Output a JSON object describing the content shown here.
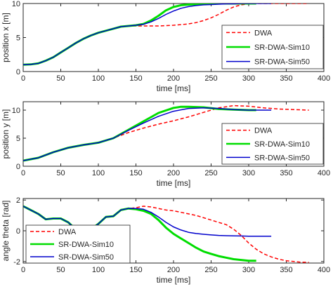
{
  "chart_data": [
    {
      "type": "line",
      "xlabel": "time [ms]",
      "ylabel": "position x [m]",
      "xlim": [
        0,
        400
      ],
      "ylim": [
        0,
        10
      ],
      "xticks": [
        "0",
        "50",
        "100",
        "150",
        "200",
        "250",
        "300",
        "350",
        "400"
      ],
      "yticks": [
        "0",
        "5",
        "10"
      ],
      "grid": false,
      "legend": {
        "position": "right",
        "entries": [
          "DWA",
          "SR-DWA-Sim10",
          "SR-DWA-Sim50"
        ]
      },
      "series": [
        {
          "name": "DWA",
          "color": "#ff0000",
          "style": "dashed",
          "x": [
            0,
            10,
            20,
            30,
            40,
            50,
            60,
            70,
            80,
            90,
            100,
            110,
            120,
            130,
            140,
            150,
            160,
            170,
            180,
            190,
            200,
            210,
            220,
            230,
            240,
            250,
            260,
            270,
            280,
            290,
            300,
            310,
            320,
            330,
            340,
            350,
            360,
            370,
            380
          ],
          "y": [
            1.0,
            1.05,
            1.2,
            1.6,
            2.1,
            2.8,
            3.5,
            4.2,
            4.8,
            5.3,
            5.7,
            6.0,
            6.3,
            6.6,
            6.7,
            6.7,
            6.7,
            6.7,
            6.7,
            6.75,
            6.8,
            6.9,
            7.0,
            7.2,
            7.5,
            7.9,
            8.4,
            9.0,
            9.5,
            9.8,
            9.95,
            10.0,
            10.0,
            10.0,
            10.0,
            10.0,
            10.0,
            10.0,
            10.0
          ]
        },
        {
          "name": "SR-DWA-Sim10",
          "color": "#00dd00",
          "style": "solid",
          "x": [
            0,
            10,
            20,
            30,
            40,
            50,
            60,
            70,
            80,
            90,
            100,
            110,
            120,
            130,
            140,
            150,
            160,
            170,
            180,
            190,
            200,
            210,
            220,
            230,
            240,
            250,
            260,
            270,
            280,
            290,
            300,
            310
          ],
          "y": [
            1.0,
            1.05,
            1.2,
            1.6,
            2.1,
            2.8,
            3.5,
            4.2,
            4.8,
            5.3,
            5.7,
            6.0,
            6.3,
            6.6,
            6.7,
            6.8,
            7.0,
            7.5,
            8.2,
            9.0,
            9.5,
            9.75,
            9.85,
            9.9,
            9.95,
            10.0,
            10.0,
            10.0,
            10.0,
            10.0,
            10.0,
            10.0
          ]
        },
        {
          "name": "SR-DWA-Sim50",
          "color": "#0000cc",
          "style": "solid",
          "x": [
            0,
            10,
            20,
            30,
            40,
            50,
            60,
            70,
            80,
            90,
            100,
            110,
            120,
            130,
            140,
            150,
            160,
            170,
            180,
            190,
            200,
            210,
            220,
            230,
            240,
            250,
            260,
            270,
            280,
            290,
            300,
            310,
            320,
            330
          ],
          "y": [
            1.0,
            1.05,
            1.2,
            1.6,
            2.1,
            2.8,
            3.5,
            4.2,
            4.8,
            5.3,
            5.7,
            6.0,
            6.3,
            6.6,
            6.7,
            6.8,
            6.95,
            7.3,
            7.8,
            8.4,
            8.9,
            9.3,
            9.55,
            9.7,
            9.8,
            9.85,
            9.9,
            9.95,
            9.95,
            10.0,
            10.0,
            10.0,
            10.0,
            10.0
          ]
        }
      ]
    },
    {
      "type": "line",
      "xlabel": "time [ms]",
      "ylabel": "position y [m]",
      "xlim": [
        0,
        400
      ],
      "ylim": [
        0,
        11.5
      ],
      "xticks": [
        "0",
        "50",
        "100",
        "150",
        "200",
        "250",
        "300",
        "350",
        "400"
      ],
      "yticks": [
        "0",
        "5",
        "10"
      ],
      "grid": false,
      "legend": {
        "position": "right",
        "entries": [
          "DWA",
          "SR-DWA-Sim10",
          "SR-DWA-Sim50"
        ]
      },
      "series": [
        {
          "name": "DWA",
          "color": "#ff0000",
          "style": "dashed",
          "x": [
            0,
            20,
            40,
            60,
            80,
            100,
            120,
            140,
            160,
            180,
            200,
            220,
            240,
            260,
            280,
            300,
            320,
            340,
            360,
            380
          ],
          "y": [
            1.0,
            1.5,
            2.5,
            3.3,
            3.8,
            4.2,
            5.0,
            6.0,
            6.8,
            7.5,
            8.1,
            8.8,
            9.6,
            10.4,
            10.8,
            10.7,
            10.4,
            10.2,
            10.1,
            10.0
          ]
        },
        {
          "name": "SR-DWA-Sim10",
          "color": "#00dd00",
          "style": "solid",
          "x": [
            0,
            20,
            40,
            60,
            80,
            100,
            120,
            140,
            160,
            180,
            200,
            210,
            220,
            240,
            260,
            280,
            300,
            310
          ],
          "y": [
            1.0,
            1.5,
            2.5,
            3.3,
            3.8,
            4.2,
            5.0,
            6.5,
            8.0,
            9.5,
            10.4,
            10.6,
            10.6,
            10.5,
            10.2,
            10.1,
            10.0,
            10.0
          ]
        },
        {
          "name": "SR-DWA-Sim50",
          "color": "#0000cc",
          "style": "solid",
          "x": [
            0,
            20,
            40,
            60,
            80,
            100,
            120,
            140,
            160,
            180,
            200,
            220,
            240,
            260,
            280,
            300,
            320,
            330
          ],
          "y": [
            1.0,
            1.5,
            2.5,
            3.3,
            3.8,
            4.2,
            5.0,
            6.4,
            7.7,
            8.9,
            9.8,
            10.3,
            10.4,
            10.3,
            10.1,
            10.0,
            10.0,
            10.0
          ]
        }
      ]
    },
    {
      "type": "line",
      "xlabel": "time [ms]",
      "ylabel": "angle theta [rad]",
      "xlim": [
        0,
        400
      ],
      "ylim": [
        -2.1,
        2.1
      ],
      "xticks": [
        "0",
        "50",
        "100",
        "150",
        "200",
        "250",
        "300",
        "350",
        "400"
      ],
      "yticks": [
        "-2",
        "0",
        "2"
      ],
      "grid": false,
      "legend": {
        "position": "left",
        "entries": [
          "DWA",
          "SR-DWA-Sim10",
          "SR-DWA-Sim50"
        ]
      },
      "series": [
        {
          "name": "DWA",
          "color": "#ff0000",
          "style": "dashed",
          "x": [
            0,
            10,
            20,
            30,
            40,
            50,
            60,
            70,
            80,
            90,
            100,
            110,
            120,
            130,
            140,
            150,
            160,
            170,
            180,
            190,
            200,
            210,
            220,
            230,
            240,
            250,
            260,
            270,
            280,
            290,
            300,
            310,
            320,
            330,
            340,
            350,
            360,
            370,
            380
          ],
          "y": [
            1.6,
            1.35,
            1.1,
            0.75,
            0.8,
            0.8,
            0.55,
            0.1,
            -0.15,
            0.1,
            0.45,
            0.9,
            0.95,
            1.35,
            1.45,
            1.5,
            1.6,
            1.55,
            1.45,
            1.35,
            1.3,
            1.2,
            1.1,
            1.0,
            0.85,
            0.7,
            0.55,
            0.4,
            0.1,
            -0.3,
            -0.8,
            -1.2,
            -1.5,
            -1.7,
            -1.85,
            -1.95,
            -2.0,
            -2.05,
            -2.05
          ]
        },
        {
          "name": "SR-DWA-Sim10",
          "color": "#00dd00",
          "style": "solid",
          "x": [
            0,
            10,
            20,
            30,
            40,
            50,
            60,
            70,
            80,
            90,
            100,
            110,
            120,
            130,
            140,
            150,
            160,
            170,
            180,
            190,
            200,
            210,
            220,
            230,
            240,
            250,
            260,
            270,
            280,
            290,
            300,
            310
          ],
          "y": [
            1.6,
            1.35,
            1.1,
            0.75,
            0.8,
            0.8,
            0.55,
            0.1,
            -0.15,
            0.1,
            0.45,
            0.9,
            0.95,
            1.35,
            1.45,
            1.4,
            1.3,
            1.1,
            0.7,
            0.2,
            -0.2,
            -0.5,
            -0.8,
            -1.1,
            -1.35,
            -1.5,
            -1.65,
            -1.75,
            -1.85,
            -1.9,
            -1.95,
            -1.95
          ]
        },
        {
          "name": "SR-DWA-Sim50",
          "color": "#0000cc",
          "style": "solid",
          "x": [
            0,
            10,
            20,
            30,
            40,
            50,
            60,
            70,
            80,
            90,
            100,
            110,
            120,
            130,
            140,
            150,
            160,
            170,
            180,
            190,
            200,
            210,
            220,
            230,
            240,
            250,
            260,
            270,
            280,
            290,
            300,
            310,
            320,
            330
          ],
          "y": [
            1.6,
            1.35,
            1.1,
            0.75,
            0.8,
            0.8,
            0.55,
            0.1,
            -0.15,
            0.1,
            0.45,
            0.9,
            0.95,
            1.35,
            1.45,
            1.45,
            1.4,
            1.2,
            0.9,
            0.55,
            0.25,
            0.05,
            -0.1,
            -0.18,
            -0.23,
            -0.27,
            -0.3,
            -0.32,
            -0.33,
            -0.34,
            -0.35,
            -0.35,
            -0.35,
            -0.35
          ]
        }
      ]
    }
  ]
}
